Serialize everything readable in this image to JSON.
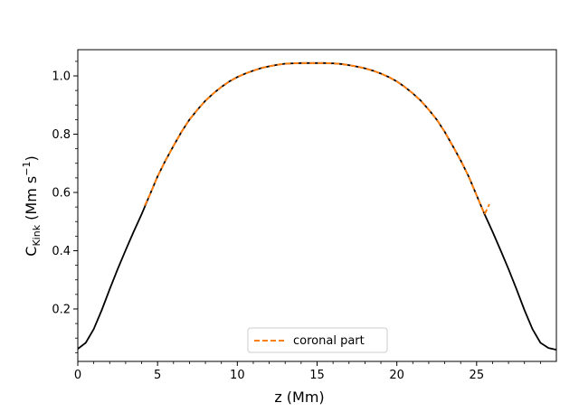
{
  "chart_data": {
    "type": "line",
    "xlabel": "z (Mm)",
    "ylabel": {
      "base": "C",
      "subscript": "Kink",
      "unit_open": " (Mm s",
      "unit_sup": "−1",
      "unit_close": ")"
    },
    "xlim": [
      0,
      30
    ],
    "ylim": [
      0.02,
      1.09
    ],
    "x_ticks": [
      {
        "value": 0,
        "label": "0"
      },
      {
        "value": 5,
        "label": "5"
      },
      {
        "value": 10,
        "label": "10"
      },
      {
        "value": 15,
        "label": "15"
      },
      {
        "value": 20,
        "label": "20"
      },
      {
        "value": 25,
        "label": "25"
      }
    ],
    "y_ticks": [
      {
        "value": 0.2,
        "label": "0.2"
      },
      {
        "value": 0.4,
        "label": "0.4"
      },
      {
        "value": 0.6,
        "label": "0.6"
      },
      {
        "value": 0.8,
        "label": "0.8"
      },
      {
        "value": 1.0,
        "label": "1.0"
      }
    ],
    "grid": false,
    "legend_position": "bottom-center",
    "series": [
      {
        "name": "",
        "style": "solid",
        "color": "#000000",
        "x": [
          0,
          0.5,
          1,
          1.5,
          2,
          2.5,
          3,
          3.5,
          4,
          4.5,
          5,
          5.5,
          6,
          6.5,
          7,
          7.5,
          8,
          8.5,
          9,
          9.5,
          10,
          10.5,
          11,
          11.5,
          12,
          12.5,
          13,
          13.5,
          14,
          14.5,
          15,
          15.5,
          16,
          16.5,
          17,
          17.5,
          18,
          18.5,
          19,
          19.5,
          20,
          20.5,
          21,
          21.5,
          22,
          22.5,
          23,
          23.5,
          24,
          24.5,
          25,
          25.5,
          26,
          26.5,
          27,
          27.5,
          28,
          28.5,
          29,
          29.5,
          30
        ],
        "y": [
          0.063,
          0.084,
          0.131,
          0.196,
          0.268,
          0.337,
          0.402,
          0.465,
          0.525,
          0.59,
          0.655,
          0.71,
          0.76,
          0.808,
          0.85,
          0.884,
          0.915,
          0.94,
          0.962,
          0.981,
          0.996,
          1.008,
          1.018,
          1.027,
          1.033,
          1.038,
          1.042,
          1.043,
          1.044,
          1.044,
          1.044,
          1.044,
          1.043,
          1.041,
          1.037,
          1.032,
          1.026,
          1.018,
          1.008,
          0.996,
          0.981,
          0.962,
          0.94,
          0.915,
          0.884,
          0.85,
          0.808,
          0.76,
          0.71,
          0.655,
          0.59,
          0.525,
          0.465,
          0.402,
          0.337,
          0.268,
          0.196,
          0.131,
          0.084,
          0.066,
          0.06
        ]
      },
      {
        "name": "coronal part",
        "style": "dashed",
        "color": "#ff7f0e",
        "x": [
          4.2,
          4.5,
          5,
          5.5,
          6,
          6.5,
          7,
          7.5,
          8,
          8.5,
          9,
          9.5,
          10,
          10.5,
          11,
          11.5,
          12,
          12.5,
          13,
          13.5,
          14,
          14.5,
          15,
          15.5,
          16,
          16.5,
          17,
          17.5,
          18,
          18.5,
          19,
          19.5,
          20,
          20.5,
          21,
          21.5,
          22,
          22.5,
          23,
          23.5,
          24,
          24.5,
          25,
          25.5,
          25.8
        ],
        "y": [
          0.555,
          0.59,
          0.655,
          0.71,
          0.76,
          0.808,
          0.85,
          0.884,
          0.915,
          0.94,
          0.962,
          0.981,
          0.996,
          1.008,
          1.018,
          1.027,
          1.033,
          1.038,
          1.042,
          1.043,
          1.044,
          1.044,
          1.044,
          1.044,
          1.043,
          1.041,
          1.037,
          1.032,
          1.026,
          1.018,
          1.008,
          0.996,
          0.981,
          0.962,
          0.94,
          0.915,
          0.884,
          0.85,
          0.808,
          0.76,
          0.71,
          0.655,
          0.59,
          0.525,
          0.56
        ]
      }
    ]
  }
}
